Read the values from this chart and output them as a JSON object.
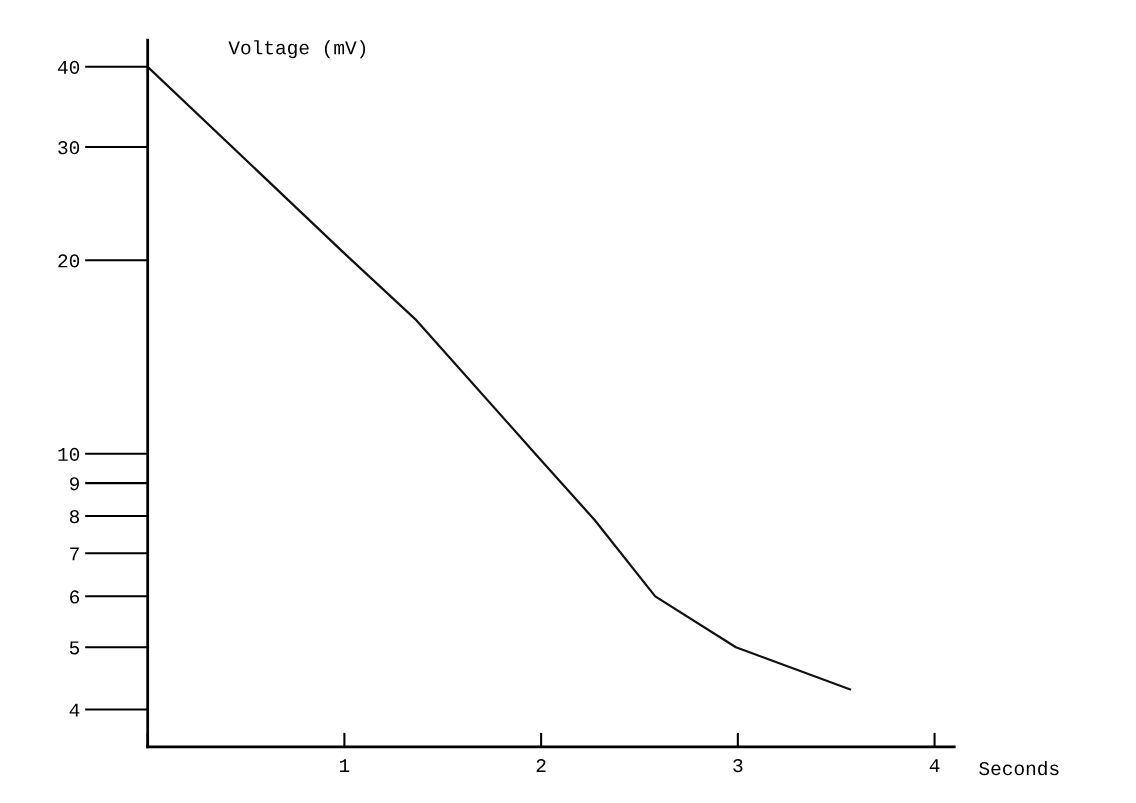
{
  "chart_data": {
    "type": "line",
    "xlabel": "Seconds",
    "ylabel": "Voltage (mV)",
    "x": [
      0,
      1,
      1.36,
      1.97,
      2.27,
      2.58,
      2.99,
      3.57
    ],
    "series": [
      {
        "color": "#111111",
        "values": [
          40,
          20.5,
          16.2,
          10,
          7.9,
          6,
          5,
          4.3
        ]
      }
    ],
    "log": "y",
    "xlim": [
      0,
      4.1
    ],
    "ylim": [
      3.5,
      44
    ],
    "xticks": [
      {
        "value": 0,
        "label": null
      },
      1,
      2,
      3,
      4
    ],
    "yticks": [
      4,
      5,
      6,
      7,
      8,
      9,
      10,
      20,
      30,
      40
    ],
    "grid": false,
    "legend": false,
    "marker": "none",
    "line_style": "solid"
  }
}
